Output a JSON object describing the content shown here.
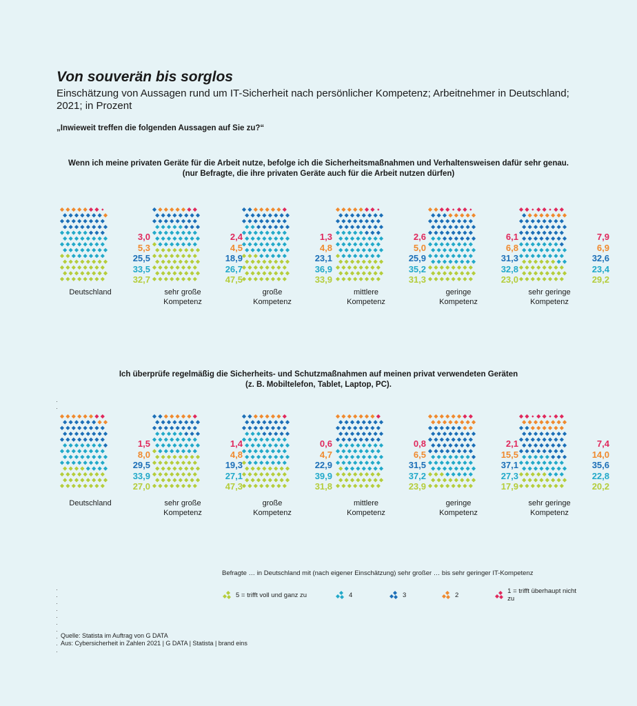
{
  "title": "Von souverän bis sorglos",
  "subtitle": "Einschätzung von Aussagen rund um IT-Sicherheit nach persönlicher Kompetenz; Arbeitnehmer in Deutschland; 2021; in Prozent",
  "question": "„Inwieweit treffen die folgenden Aussagen auf Sie zu?“",
  "colors": {
    "5": "#b5cd3b",
    "4": "#22a9c9",
    "3": "#1c6fb7",
    "2": "#f08a2e",
    "1": "#e0285c"
  },
  "chart_data": [
    {
      "type": "stacked-waffle",
      "title": "Wenn ich meine privaten Geräte für die Arbeit nutze, befolge ich die Sicherheitsmaßnahmen und Verhaltensweisen dafür sehr genau.",
      "subtitle": "(nur Befragte, die ihre privaten Geräte auch für die Arbeit nutzen dürfen)",
      "categories": [
        "Deutschland",
        "sehr große Kompetenz",
        "große Kompetenz",
        "mittlere Kompetenz",
        "geringe Kompetenz",
        "sehr geringe Kompetenz"
      ],
      "category_lines": [
        [
          "Deutschland"
        ],
        [
          "sehr große",
          "Kompetenz"
        ],
        [
          "große",
          "Kompetenz"
        ],
        [
          "mittlere",
          "Kompetenz"
        ],
        [
          "geringe",
          "Kompetenz"
        ],
        [
          "sehr geringe",
          "Kompetenz"
        ]
      ],
      "series": [
        {
          "key": "1",
          "values": [
            3.0,
            2.4,
            1.3,
            2.6,
            6.1,
            7.9
          ],
          "labels": [
            "3,0",
            "2,4",
            "1,3",
            "2,6",
            "6,1",
            "7,9"
          ]
        },
        {
          "key": "2",
          "values": [
            5.3,
            4.5,
            4.8,
            5.0,
            6.8,
            6.9
          ],
          "labels": [
            "5,3",
            "4,5",
            "4,8",
            "5,0",
            "6,8",
            "6,9"
          ]
        },
        {
          "key": "3",
          "values": [
            25.5,
            18.9,
            23.1,
            25.9,
            31.3,
            32.6
          ],
          "labels": [
            "25,5",
            "18,9",
            "23,1",
            "25,9",
            "31,3",
            "32,6"
          ]
        },
        {
          "key": "4",
          "values": [
            33.5,
            26.7,
            36.9,
            35.2,
            32.8,
            23.4
          ],
          "labels": [
            "33,5",
            "26,7",
            "36,9",
            "35,2",
            "32,8",
            "23,4"
          ]
        },
        {
          "key": "5",
          "values": [
            32.7,
            47.5,
            33.9,
            31.3,
            23.0,
            29.2
          ],
          "labels": [
            "32,7",
            "47,5",
            "33,9",
            "31,3",
            "23,0",
            "29,2"
          ]
        }
      ]
    },
    {
      "type": "stacked-waffle",
      "title": "Ich überprüfe regelmäßig die Sicherheits- und Schutzmaßnahmen auf meinen privat verwendeten Geräten",
      "subtitle": "(z. B. Mobiltelefon, Tablet, Laptop, PC).",
      "categories": [
        "Deutschland",
        "sehr große Kompetenz",
        "große Kompetenz",
        "mittlere Kompetenz",
        "geringe Kompetenz",
        "sehr geringe Kompetenz"
      ],
      "category_lines": [
        [
          "Deutschland"
        ],
        [
          "sehr große",
          "Kompetenz"
        ],
        [
          "große",
          "Kompetenz"
        ],
        [
          "mittlere",
          "Kompetenz"
        ],
        [
          "geringe",
          "Kompetenz"
        ],
        [
          "sehr geringe",
          "Kompetenz"
        ]
      ],
      "series": [
        {
          "key": "1",
          "values": [
            1.5,
            1.4,
            0.6,
            0.8,
            2.1,
            7.4
          ],
          "labels": [
            "1,5",
            "1,4",
            "0,6",
            "0,8",
            "2,1",
            "7,4"
          ]
        },
        {
          "key": "2",
          "values": [
            8.0,
            4.8,
            4.7,
            6.5,
            15.5,
            14.0
          ],
          "labels": [
            "8,0",
            "4,8",
            "4,7",
            "6,5",
            "15,5",
            "14,0"
          ]
        },
        {
          "key": "3",
          "values": [
            29.5,
            19.3,
            22.9,
            31.5,
            37.1,
            35.6
          ],
          "labels": [
            "29,5",
            "19,3",
            "22,9",
            "31,5",
            "37,1",
            "35,6"
          ]
        },
        {
          "key": "4",
          "values": [
            33.9,
            27.1,
            39.9,
            37.2,
            27.3,
            22.8
          ],
          "labels": [
            "33,9",
            "27,1",
            "39,9",
            "37,2",
            "27,3",
            "22,8"
          ]
        },
        {
          "key": "5",
          "values": [
            27.0,
            47.3,
            31.8,
            23.9,
            17.9,
            20.2
          ],
          "labels": [
            "27,0",
            "47,3",
            "31,8",
            "23,9",
            "17,9",
            "20,2"
          ]
        }
      ]
    }
  ],
  "legend_note": "Befragte … in Deutschland mit (nach eigener Einschätzung) sehr großer … bis sehr geringer IT-Kompetenz",
  "legend": [
    {
      "key": "5",
      "label": "5 = trifft voll und ganz zu"
    },
    {
      "key": "4",
      "label": "4"
    },
    {
      "key": "3",
      "label": "3"
    },
    {
      "key": "2",
      "label": "2"
    },
    {
      "key": "1",
      "label": "1 = trifft überhaupt nicht zu"
    }
  ],
  "source": {
    "line1": "Quelle: Statista im Auftrag von G DATA",
    "line2": "Aus: Cybersicherheit in Zahlen 2021 | G DATA | Statista | brand eins"
  }
}
